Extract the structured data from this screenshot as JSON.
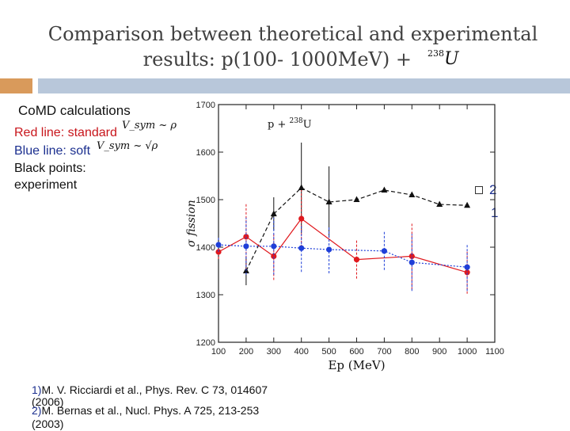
{
  "slide": {
    "title_line1": "Comparison between theoretical and experimental",
    "title_line2": "results: p(100- 1000MeV) +",
    "nucleus_mass": "238",
    "nucleus_symbol": "U"
  },
  "legend": {
    "heading": "CoMD calculations",
    "red_line": "Red line: standard",
    "blue_line": "Blue line: soft",
    "black_points": "Black points: experiment",
    "red_formula": "V_sym ~ ρ",
    "blue_formula": "V_sym ~ √ρ"
  },
  "refnums": {
    "a": "2",
    "b": "1"
  },
  "references": {
    "ref1_num": "1)",
    "ref1_text": "M. V. Ricciardi et al., Phys. Rev. C 73, 014607",
    "ref1_year": "(2006)",
    "ref2_num": "2)",
    "ref2_text": "M. Bernas et al., Nucl. Phys. A 725, 213-253",
    "ref2_year": "(2003)"
  },
  "colors": {
    "red": "#e0191e",
    "blue": "#1f3fd8",
    "black": "#111111"
  },
  "chart_data": {
    "type": "scatter",
    "title": "p + 238U",
    "xlabel": "Ep (MeV)",
    "ylabel": "σ fission",
    "xlim": [
      100,
      1100
    ],
    "ylim": [
      1200,
      1700
    ],
    "xticks": [
      100,
      200,
      300,
      400,
      500,
      600,
      700,
      800,
      900,
      1000,
      1100
    ],
    "yticks": [
      1200,
      1300,
      1400,
      1500,
      1600,
      1700
    ],
    "annotation_main": "p + ",
    "annotation_sup": "238",
    "annotation_sym": "U",
    "series": [
      {
        "name": "experiment",
        "color": "#111111",
        "marker": "triangle",
        "style": "dashed",
        "points": [
          {
            "x": 200,
            "y": 1350,
            "err": 30
          },
          {
            "x": 300,
            "y": 1470,
            "err": 35
          },
          {
            "x": 400,
            "y": 1525,
            "err": 95
          },
          {
            "x": 500,
            "y": 1495,
            "err": 75
          },
          {
            "x": 600,
            "y": 1500
          },
          {
            "x": 700,
            "y": 1520
          },
          {
            "x": 800,
            "y": 1510
          },
          {
            "x": 900,
            "y": 1490
          },
          {
            "x": 1000,
            "y": 1488
          }
        ]
      },
      {
        "name": "standard",
        "color": "#e0191e",
        "marker": "circle",
        "style": "solid",
        "points": [
          {
            "x": 100,
            "y": 1390,
            "err": 15
          },
          {
            "x": 200,
            "y": 1422,
            "err": 70
          },
          {
            "x": 300,
            "y": 1381,
            "err": 50
          },
          {
            "x": 400,
            "y": 1460,
            "err": 60
          },
          {
            "x": 600,
            "y": 1374,
            "err": 40
          },
          {
            "x": 800,
            "y": 1381,
            "err": 70
          },
          {
            "x": 1000,
            "y": 1347,
            "err": 45
          }
        ]
      },
      {
        "name": "soft",
        "color": "#1f3fd8",
        "marker": "circle",
        "style": "dotted",
        "points": [
          {
            "x": 100,
            "y": 1405,
            "err": 15
          },
          {
            "x": 200,
            "y": 1402,
            "err": 60
          },
          {
            "x": 300,
            "y": 1402,
            "err": 60
          },
          {
            "x": 400,
            "y": 1398,
            "err": 50
          },
          {
            "x": 500,
            "y": 1395,
            "err": 50
          },
          {
            "x": 700,
            "y": 1392,
            "err": 40
          },
          {
            "x": 800,
            "y": 1368,
            "err": 60
          },
          {
            "x": 1000,
            "y": 1358,
            "err": 50
          }
        ]
      }
    ]
  }
}
